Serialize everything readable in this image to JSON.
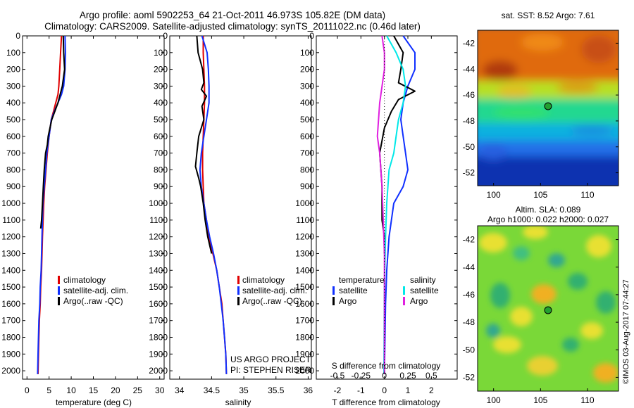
{
  "header": {
    "title_line1": "Argo profile: aoml 5902253_64 21-Oct-2011 46.973S 105.82E (DM data)",
    "title_line2": "Climatology: CARS2009. Satellite-adjusted climatology: synTS_20111022.nc (0.46d later)"
  },
  "colors": {
    "climatology": "#e00000",
    "satellite": "#1030ff",
    "argo": "#000000",
    "sat_salinity": "#00e8e8",
    "argo_salinity": "#e020e0"
  },
  "chart_data": [
    {
      "type": "line",
      "xlabel": "temperature (deg C)",
      "ylabel": "",
      "xlim": [
        -1,
        31
      ],
      "ylim": [
        2050,
        0
      ],
      "xticks": [
        0,
        5,
        10,
        15,
        20,
        25,
        30
      ],
      "yticks": [
        0,
        100,
        200,
        300,
        400,
        500,
        600,
        700,
        800,
        900,
        1000,
        1100,
        1200,
        1300,
        1400,
        1500,
        1600,
        1700,
        1800,
        1900,
        2000
      ],
      "legend": [
        "climatology",
        "satellite-adj. clim.",
        "Argo(..raw -QC)"
      ],
      "series": [
        {
          "name": "climatology",
          "color": "#e00000",
          "x": [
            7.8,
            7.6,
            7.4,
            7.2,
            7.0,
            6.5,
            6.0,
            5.5,
            5.0,
            4.6,
            4.3,
            4.0,
            3.8,
            3.5,
            3.3,
            3.1,
            3.0,
            2.8,
            2.7,
            2.6,
            2.5
          ],
          "y": [
            0,
            100,
            200,
            300,
            350,
            400,
            450,
            500,
            600,
            700,
            800,
            900,
            1000,
            1200,
            1400,
            1500,
            1600,
            1700,
            1800,
            1900,
            2020
          ]
        },
        {
          "name": "satellite-adj. clim.",
          "color": "#1030ff",
          "x": [
            8.6,
            8.7,
            8.6,
            8.3,
            7.8,
            7.0,
            6.2,
            5.5,
            5.0,
            4.5,
            4.2,
            3.9,
            3.6,
            3.4,
            3.2,
            3.0,
            2.9,
            2.7,
            2.6,
            2.5,
            2.4
          ],
          "y": [
            0,
            100,
            200,
            300,
            350,
            400,
            450,
            500,
            600,
            700,
            800,
            900,
            1000,
            1200,
            1400,
            1500,
            1600,
            1700,
            1800,
            1900,
            2020
          ]
        },
        {
          "name": "Argo(..raw -QC)",
          "color": "#000000",
          "x": [
            8.2,
            8.3,
            8.5,
            8.0,
            7.5,
            7.0,
            6.3,
            5.6,
            5.2,
            4.8,
            4.6,
            4.2,
            3.9,
            3.7,
            3.5,
            3.3,
            3.1
          ],
          "y": [
            0,
            100,
            200,
            300,
            350,
            400,
            450,
            500,
            550,
            600,
            650,
            700,
            800,
            900,
            1000,
            1100,
            1150
          ]
        }
      ]
    },
    {
      "type": "line",
      "xlabel": "salinity",
      "ylabel": "",
      "xlim": [
        33.85,
        36.05
      ],
      "ylim": [
        2050,
        0
      ],
      "xticks": [
        34,
        34.5,
        35,
        35.5,
        36
      ],
      "yticks": [
        0,
        100,
        200,
        300,
        400,
        500,
        600,
        700,
        800,
        900,
        1000,
        1100,
        1200,
        1300,
        1400,
        1500,
        1600,
        1700,
        1800,
        1900,
        2000
      ],
      "legend": [
        "climatology",
        "satellite-adj. clim."
      ],
      "annotations": [
        "Argo(..raw -QC)",
        "US ARGO PROJECT",
        "PI: STEPHEN RISER"
      ],
      "series": [
        {
          "name": "climatology",
          "color": "#e00000",
          "x": [
            34.37,
            34.37,
            34.38,
            34.39,
            34.39,
            34.38,
            34.37,
            34.36,
            34.36,
            34.37,
            34.38,
            34.42,
            34.45,
            34.52,
            34.58,
            34.62,
            34.66,
            34.68,
            34.7,
            34.72,
            34.73
          ],
          "y": [
            0,
            100,
            200,
            300,
            400,
            500,
            600,
            700,
            800,
            900,
            1000,
            1100,
            1200,
            1300,
            1400,
            1500,
            1600,
            1700,
            1800,
            1900,
            2020
          ]
        },
        {
          "name": "satellite-adj. clim.",
          "color": "#1030ff",
          "x": [
            34.35,
            34.43,
            34.45,
            34.46,
            34.46,
            34.42,
            34.38,
            34.34,
            34.32,
            34.34,
            34.38,
            34.42,
            34.47,
            34.53,
            34.58,
            34.62,
            34.65,
            34.68,
            34.7,
            34.72,
            34.73
          ],
          "y": [
            0,
            100,
            200,
            300,
            400,
            500,
            600,
            700,
            800,
            900,
            1000,
            1100,
            1200,
            1300,
            1400,
            1500,
            1600,
            1700,
            1800,
            1900,
            2020
          ]
        },
        {
          "name": "Argo(..raw -QC)",
          "color": "#000000",
          "x": [
            34.27,
            34.29,
            34.36,
            34.38,
            34.34,
            34.42,
            34.35,
            34.38,
            34.3,
            34.27,
            34.25,
            34.3,
            34.33,
            34.37,
            34.4,
            34.44,
            34.5
          ],
          "y": [
            0,
            100,
            200,
            280,
            320,
            360,
            420,
            500,
            600,
            700,
            780,
            850,
            900,
            1000,
            1100,
            1200,
            1300
          ]
        }
      ]
    },
    {
      "type": "line",
      "xlabel": "T difference from climatology",
      "ylabel": "",
      "xlim": [
        -2.9,
        3.1
      ],
      "ylim": [
        2050,
        0
      ],
      "xticks": [
        -2,
        -1,
        0,
        1,
        2
      ],
      "yticks": [
        0,
        100,
        200,
        300,
        400,
        500,
        600,
        700,
        800,
        900,
        1000,
        1100,
        1200,
        1300,
        1400,
        1500,
        1600,
        1700,
        1800,
        1900,
        2000
      ],
      "s_axis_label": "S difference from climatology",
      "s_xticks": [
        "-0.5",
        "-0.25",
        "0",
        "0.25",
        "0.5"
      ],
      "legend_titles": [
        "temperature",
        "salinity"
      ],
      "legend": [
        "satellite",
        "Argo",
        "satellite",
        "Argo"
      ],
      "series": [
        {
          "name": "satellite",
          "color": "#1030ff",
          "x": [
            0.8,
            1.3,
            1.3,
            1.0,
            0.8,
            0.7,
            0.8,
            0.9,
            1.0,
            0.8,
            0.4,
            0.2,
            0.1,
            0.05,
            0.0
          ],
          "y": [
            0,
            100,
            200,
            300,
            400,
            500,
            600,
            700,
            800,
            900,
            1000,
            1200,
            1400,
            1600,
            2020
          ]
        },
        {
          "name": "Argo",
          "color": "#000000",
          "x": [
            0.4,
            0.8,
            0.7,
            0.6,
            1.3,
            0.6,
            0.3,
            0.0,
            -0.2,
            -0.1,
            -0.1,
            0.0,
            0.0
          ],
          "y": [
            0,
            100,
            200,
            280,
            330,
            380,
            450,
            550,
            700,
            900,
            1100,
            1200,
            1300
          ]
        },
        {
          "name": "satellite",
          "color": "#00e8e8",
          "x": [
            0.1,
            0.5,
            0.8,
            0.9,
            0.8,
            0.6,
            0.5,
            0.4,
            0.2,
            0.1,
            0.05,
            0.0,
            -0.02
          ],
          "y": [
            0,
            100,
            200,
            300,
            400,
            500,
            600,
            700,
            800,
            1000,
            1200,
            1500,
            2020
          ]
        },
        {
          "name": "Argo",
          "color": "#e020e0",
          "x": [
            -0.1,
            0.0,
            0.0,
            -0.2,
            -0.3,
            -0.2,
            -0.1,
            -0.05,
            0.0,
            0.0
          ],
          "y": [
            0,
            100,
            200,
            400,
            600,
            700,
            900,
            1100,
            1300,
            2020
          ]
        }
      ]
    },
    {
      "type": "heatmap",
      "title": "sat. SST: 8.52 Argo: 7.61",
      "xticks": [
        100,
        105,
        110
      ],
      "yticks": [
        -42,
        -44,
        -46,
        -48,
        -50,
        -52
      ],
      "xlim": [
        98.3,
        113.3
      ],
      "ylim": [
        -53,
        -41
      ],
      "marker": {
        "lon": 105.82,
        "lat": -46.973
      }
    },
    {
      "type": "heatmap",
      "title_line1": "Altim. SLA: 0.089",
      "title_line2": "Argo h1000: 0.022 h2000: 0.027",
      "xticks": [
        100,
        105,
        110
      ],
      "yticks": [
        -42,
        -44,
        -46,
        -48,
        -50,
        -52
      ],
      "xlim": [
        98.3,
        113.3
      ],
      "ylim": [
        -53,
        -41
      ],
      "marker": {
        "lon": 105.82,
        "lat": -46.973
      },
      "side_label": "©IMOS 03-Aug-2017 07:44:27"
    }
  ]
}
